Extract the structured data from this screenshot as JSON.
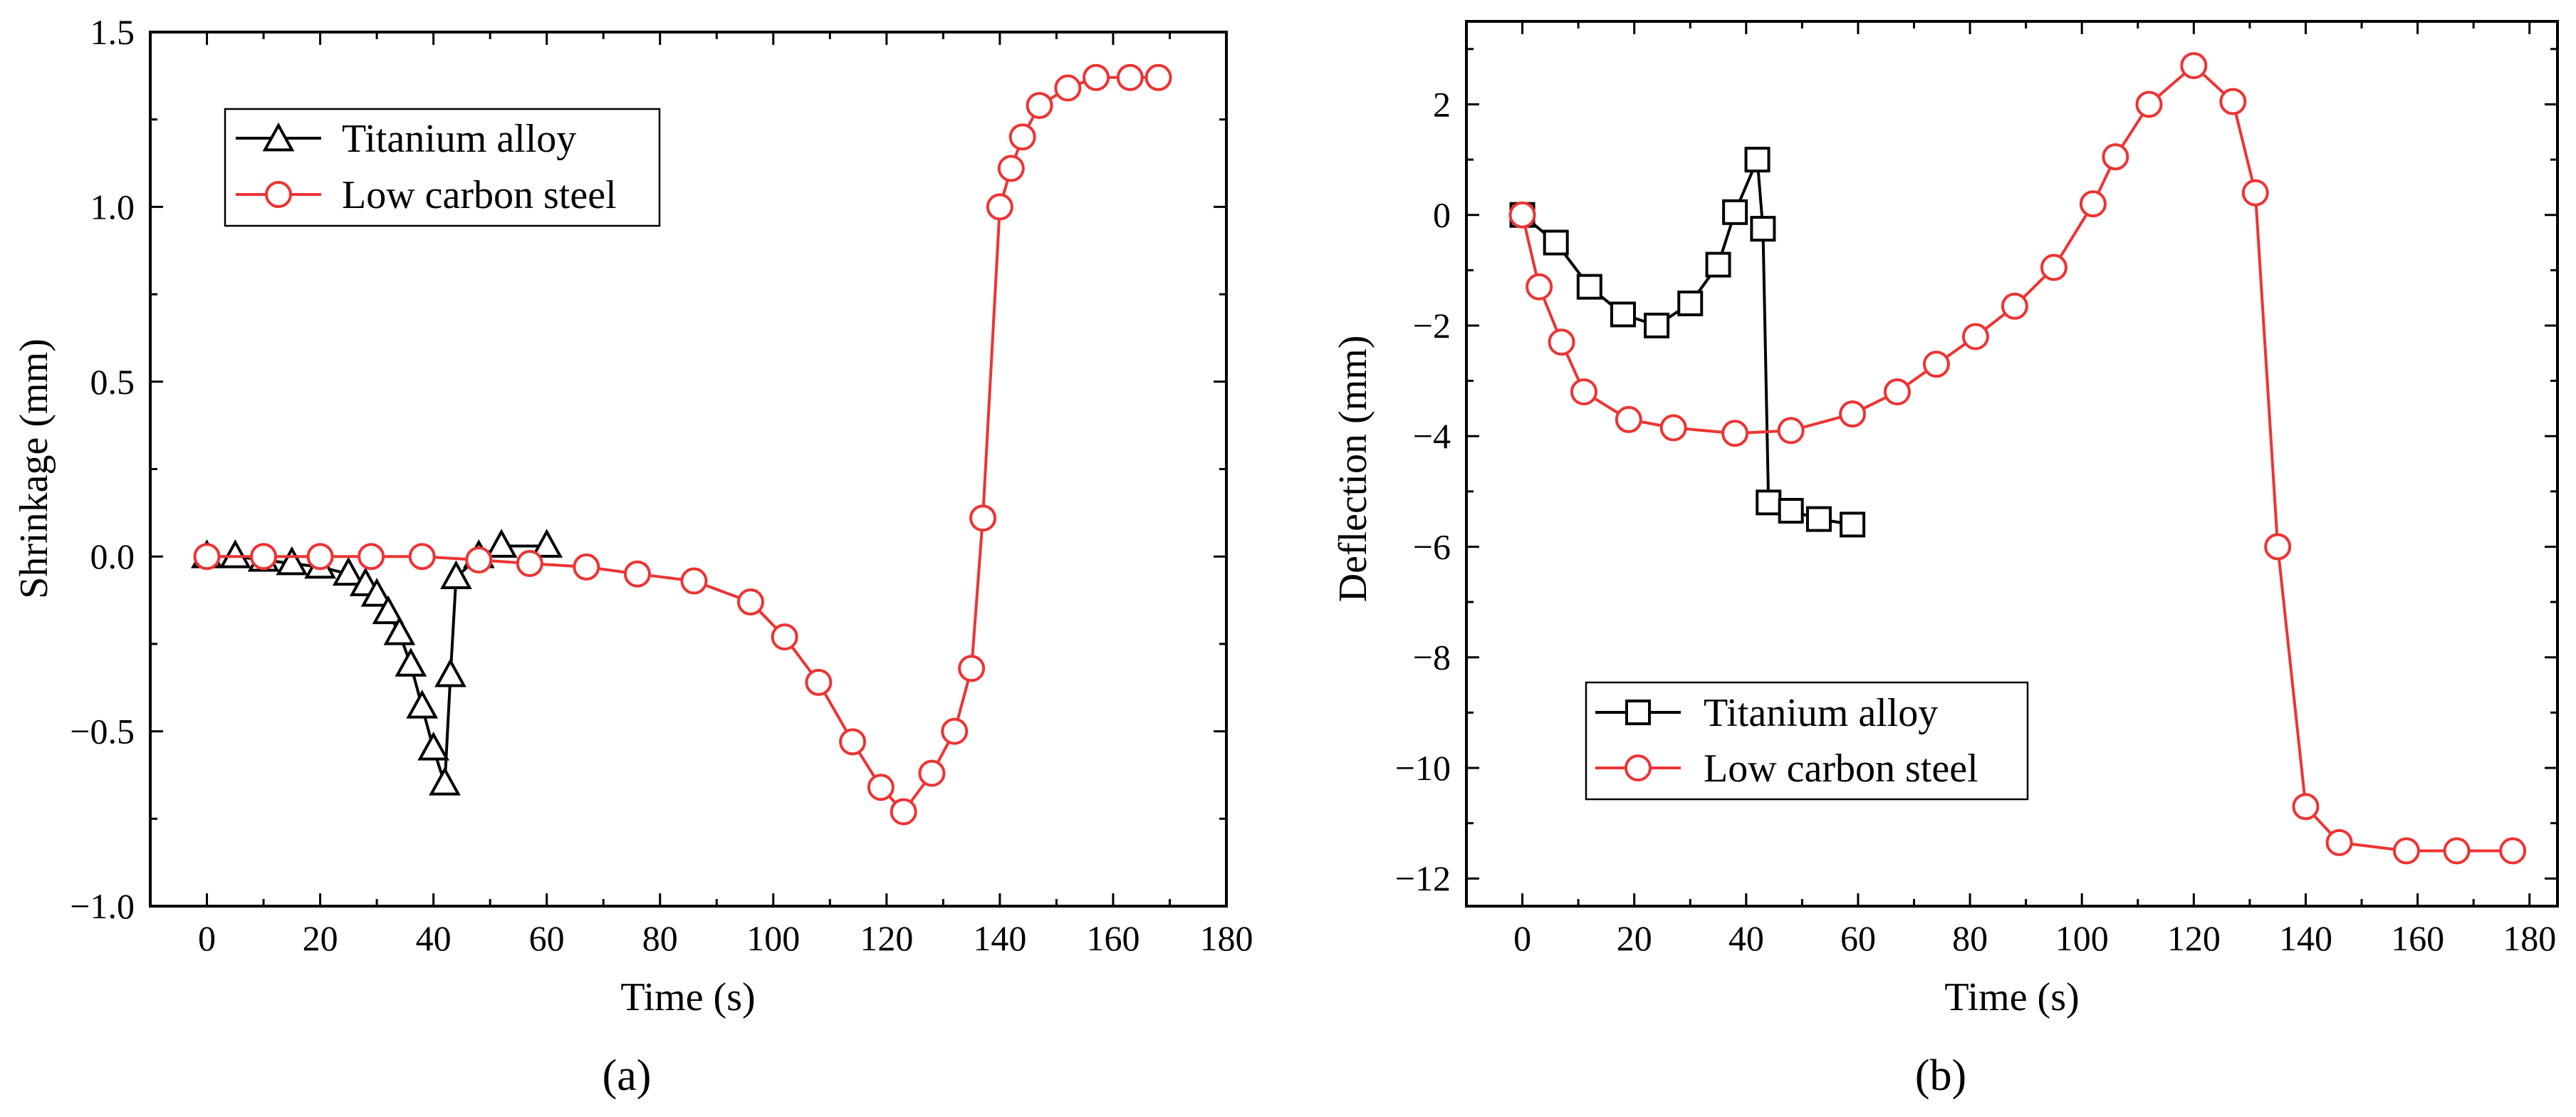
{
  "colors": {
    "titanium": "#000000",
    "steel": "#ee3333"
  },
  "chart_data": [
    {
      "type": "line",
      "panel_label": "(a)",
      "xlabel": "Time (s)",
      "ylabel": "Shrinkage (mm)",
      "xlim": [
        -10,
        180
      ],
      "ylim": [
        -1.0,
        1.5
      ],
      "xticks": [
        0,
        20,
        40,
        60,
        80,
        100,
        120,
        140,
        160,
        180
      ],
      "yticks": [
        -1.0,
        -0.5,
        0.0,
        0.5,
        1.0,
        1.5
      ],
      "ytick_labels": [
        "−1.0",
        "−0.5",
        "0.0",
        "0.5",
        "1.0",
        "1.5"
      ],
      "legend_position": "top-left",
      "series": [
        {
          "name": "Titanium alloy",
          "marker": "triangle",
          "color": "#000000",
          "x": [
            0,
            5,
            10,
            15,
            20,
            25,
            28,
            30,
            32,
            34,
            36,
            38,
            40,
            42,
            43,
            44,
            48,
            52,
            60
          ],
          "y": [
            0.0,
            0.0,
            -0.01,
            -0.02,
            -0.03,
            -0.05,
            -0.08,
            -0.11,
            -0.16,
            -0.22,
            -0.31,
            -0.43,
            -0.55,
            -0.65,
            -0.34,
            -0.06,
            0.0,
            0.03,
            0.03
          ]
        },
        {
          "name": "Low carbon steel",
          "marker": "circle",
          "color": "#ee3333",
          "x": [
            0,
            10,
            20,
            29,
            38,
            48,
            57,
            67,
            76,
            86,
            96,
            102,
            108,
            114,
            119,
            123,
            128,
            132,
            135,
            137,
            140,
            142,
            144,
            147,
            152,
            157,
            163,
            168
          ],
          "y": [
            0.0,
            0.0,
            0.0,
            0.0,
            0.0,
            -0.01,
            -0.02,
            -0.03,
            -0.05,
            -0.07,
            -0.13,
            -0.23,
            -0.36,
            -0.53,
            -0.66,
            -0.73,
            -0.62,
            -0.5,
            -0.32,
            0.11,
            1.0,
            1.11,
            1.2,
            1.29,
            1.34,
            1.37,
            1.37,
            1.37
          ]
        }
      ]
    },
    {
      "type": "line",
      "panel_label": "(b)",
      "xlabel": "Time (s)",
      "ylabel": "Deflection (mm)",
      "xlim": [
        -10,
        185
      ],
      "ylim": [
        -12.5,
        3.5
      ],
      "xticks": [
        0,
        20,
        40,
        60,
        80,
        100,
        120,
        140,
        160,
        180
      ],
      "yticks": [
        -12,
        -10,
        -8,
        -6,
        -4,
        -2,
        0,
        2
      ],
      "ytick_labels": [
        "−12",
        "−10",
        "−8",
        "−6",
        "−4",
        "−2",
        "0",
        "2"
      ],
      "legend_position": "bottom-left",
      "series": [
        {
          "name": "Titanium alloy",
          "marker": "square",
          "color": "#000000",
          "x": [
            0,
            6,
            12,
            18,
            24,
            30,
            35,
            38,
            42,
            43,
            44,
            48,
            53,
            59
          ],
          "y": [
            0.0,
            -0.5,
            -1.3,
            -1.8,
            -2.0,
            -1.6,
            -0.9,
            0.05,
            1.0,
            -0.25,
            -5.2,
            -5.35,
            -5.5,
            -5.6
          ]
        },
        {
          "name": "Low carbon steel",
          "marker": "circle",
          "color": "#ee3333",
          "x": [
            0,
            3,
            7,
            11,
            19,
            27,
            38,
            48,
            59,
            67,
            74,
            81,
            88,
            95,
            102,
            106,
            112,
            120,
            127,
            131,
            135,
            140,
            146,
            158,
            167,
            177
          ],
          "y": [
            0.0,
            -1.3,
            -2.3,
            -3.2,
            -3.7,
            -3.85,
            -3.95,
            -3.9,
            -3.6,
            -3.2,
            -2.7,
            -2.2,
            -1.65,
            -0.95,
            0.2,
            1.05,
            2.0,
            2.7,
            2.05,
            0.4,
            -6.0,
            -10.7,
            -11.35,
            -11.5,
            -11.5,
            -11.5
          ]
        }
      ]
    }
  ]
}
